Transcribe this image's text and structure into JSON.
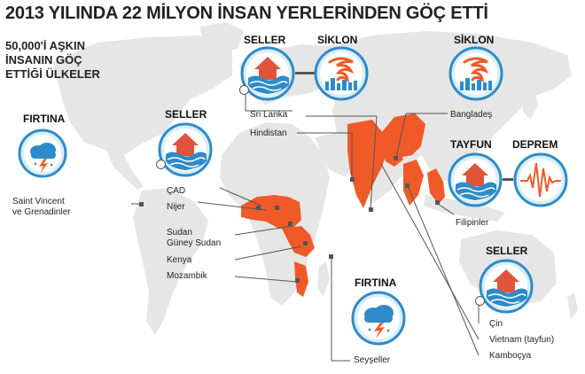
{
  "title": "2013 YILINDA 22 MİLYON İNSAN YERLERİNDEN GÖÇ ETTİ",
  "subtitle": [
    "50,000'İ AŞKIN",
    "İNSANIN GÖÇ",
    "ETTİĞİ ÜLKELER"
  ],
  "colors": {
    "highlight": "#f05a28",
    "land": "#e6e6e6",
    "ocean": "#ffffff",
    "iconBlue": "#2e8bc9",
    "house": "#e0553a"
  },
  "disasters": {
    "storm_left": "FIRTINA",
    "flood_africa": "SELLER",
    "flood_india": "SELLER",
    "cyclone_india": "SİKLON",
    "cyclone_bangladesh": "SİKLON",
    "typhoon": "TAYFUN",
    "earthquake": "DEPREM",
    "flood_asia": "SELLER",
    "storm_seychelles": "FIRTINA"
  },
  "icons": {
    "storm_left": "storm-cloud-icon",
    "flood_africa": "flooded-house-icon",
    "flood_india": "flooded-house-icon",
    "cyclone_india": "cyclone-icon",
    "cyclone_bangladesh": "cyclone-icon",
    "typhoon": "flooded-house-icon",
    "earthquake": "seismograph-icon",
    "flood_asia": "flooded-house-icon",
    "storm_seychelles": "storm-cloud-icon"
  },
  "countries": {
    "saint_vincent": [
      "Saint Vincent",
      "ve Grenadinler"
    ],
    "chad": "ÇAD",
    "niger": "Nijer",
    "sudan": "Sudan",
    "south_sudan": "Güney Sudan",
    "kenya": "Kenya",
    "mozambique": "Mozambik",
    "sri_lanka": "Sri Lanka",
    "india": "Hindistan",
    "bangladesh": "Bangladeş",
    "philippines": "Filipinler",
    "china": "Çin",
    "vietnam": "Vietnam (tayfun)",
    "cambodia": "Kamboçya",
    "seychelles": "Seyşeller"
  }
}
